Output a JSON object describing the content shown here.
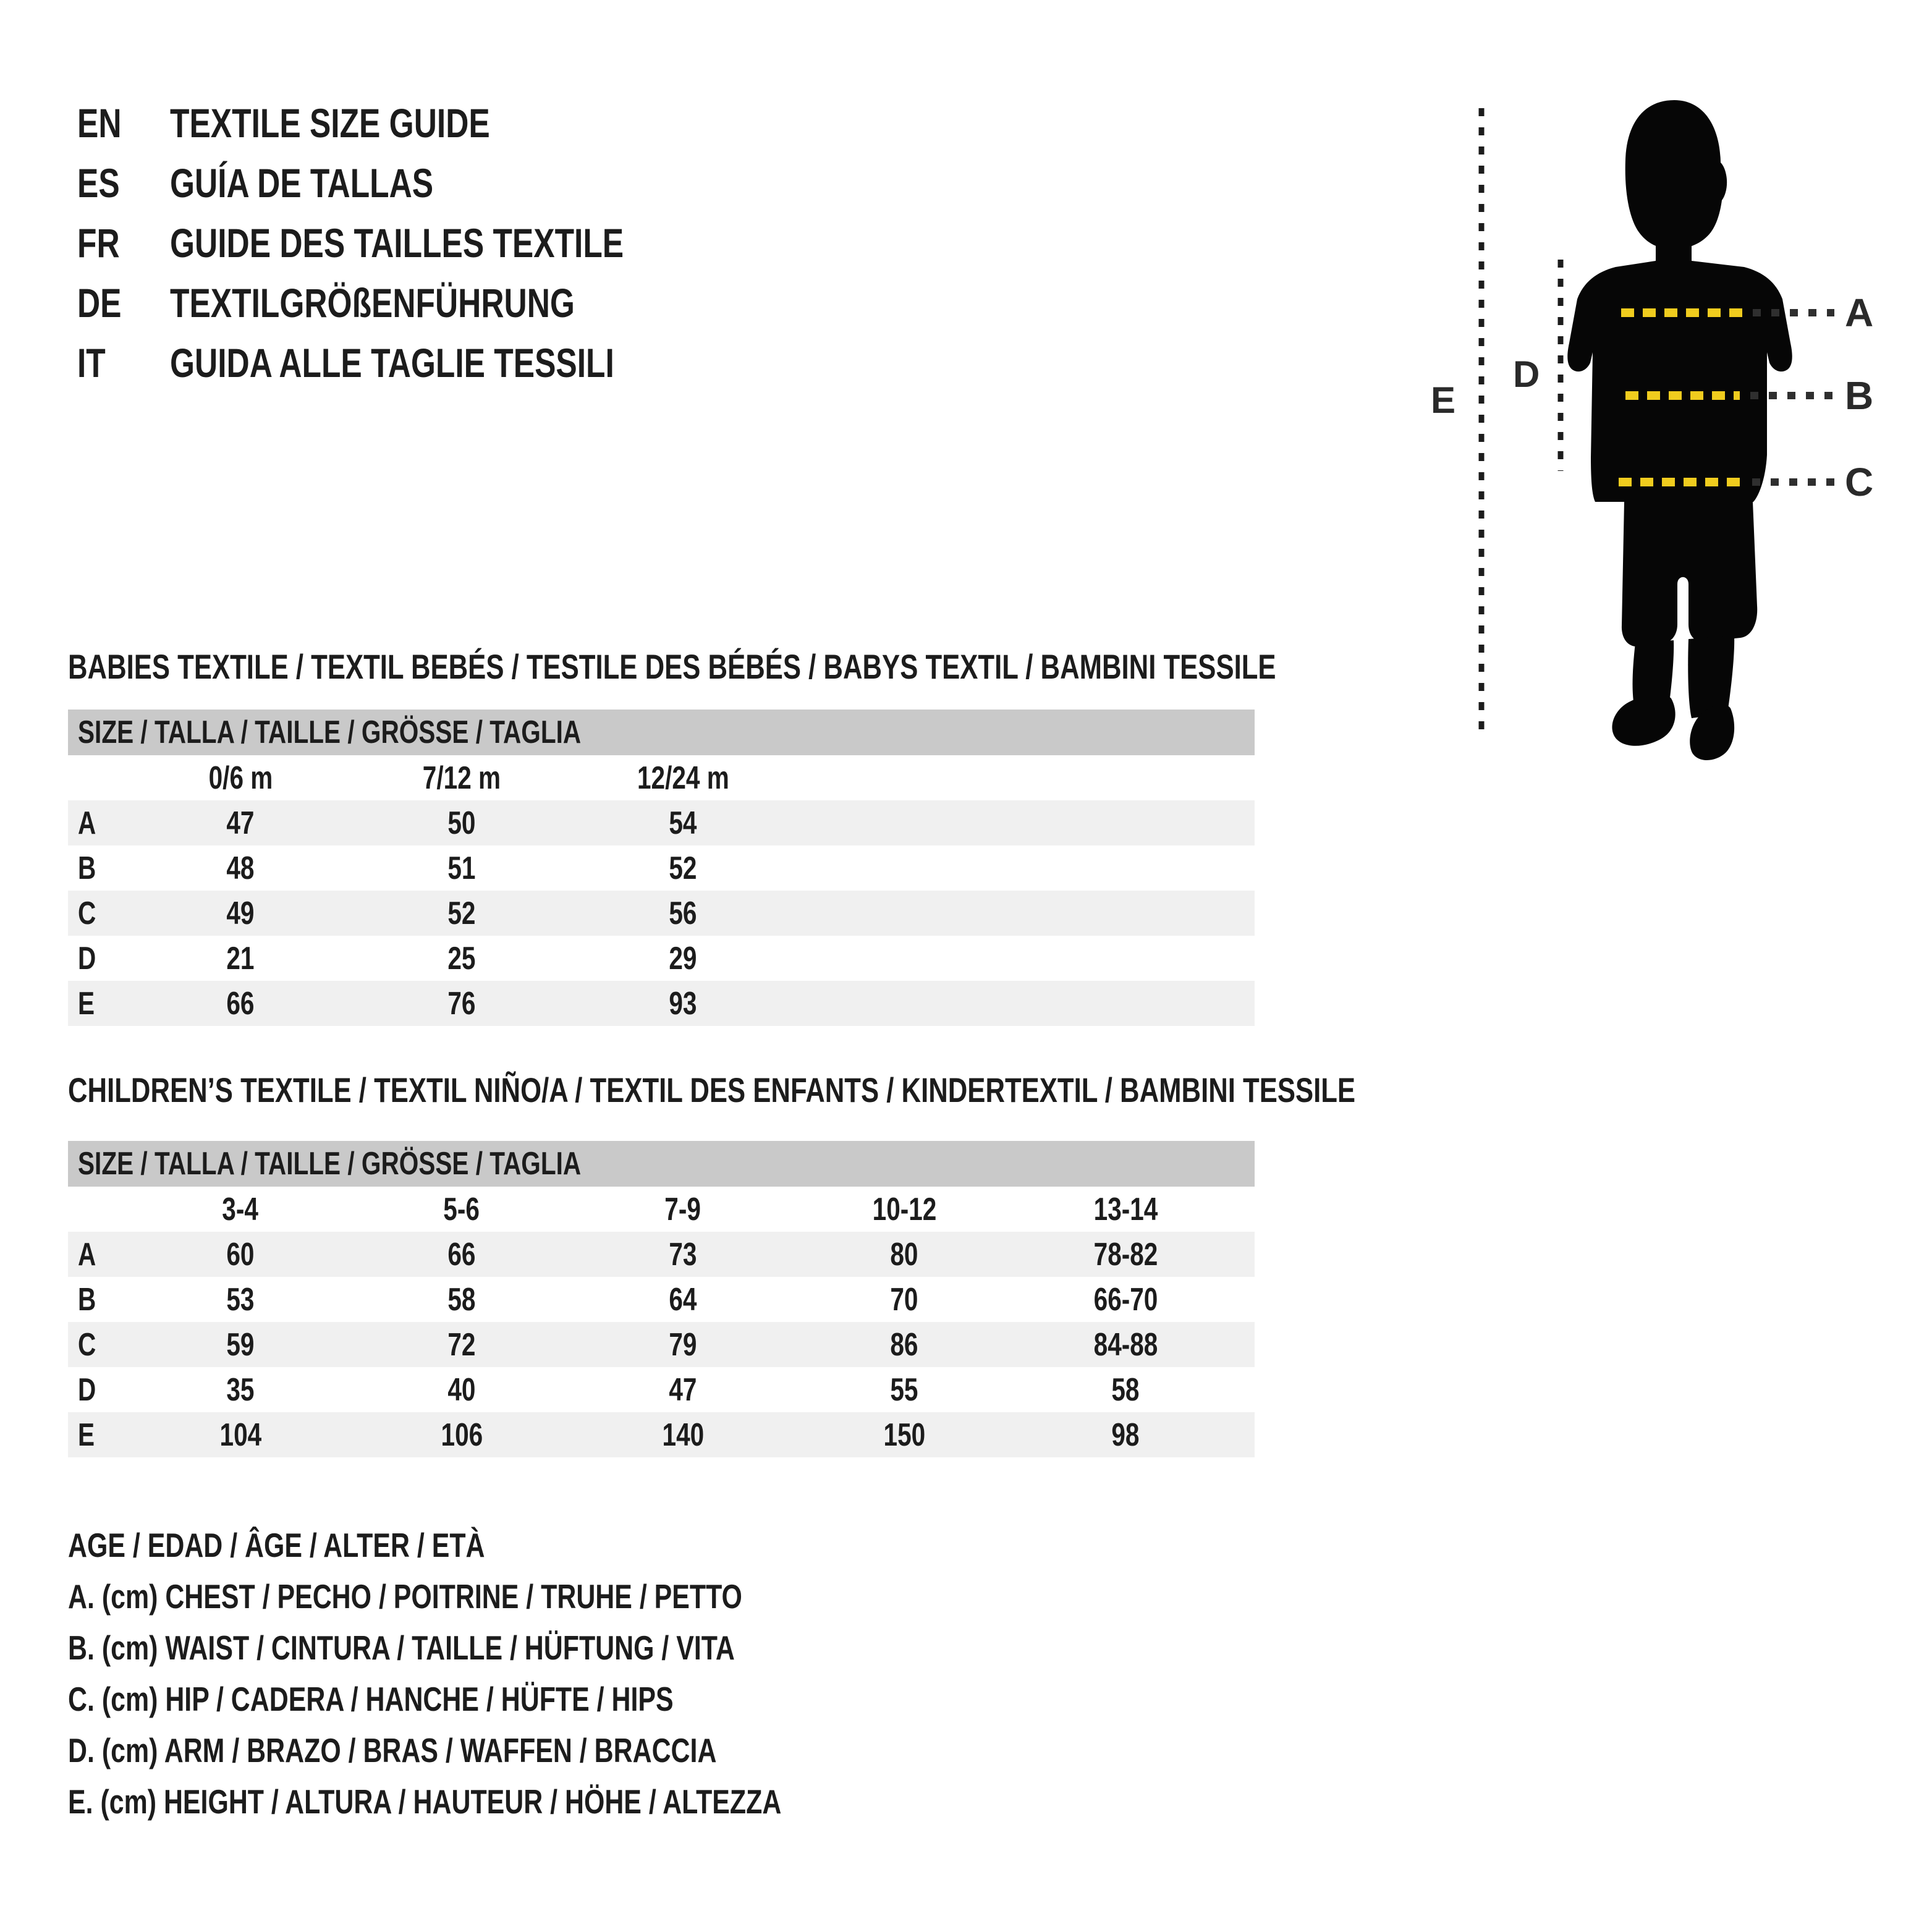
{
  "page": {
    "background": "#ffffff",
    "text_color": "#1c1c1c"
  },
  "header": {
    "items": [
      {
        "code": "EN",
        "title": "TEXTILE SIZE GUIDE"
      },
      {
        "code": "ES",
        "title": "GUÍA DE TALLAS"
      },
      {
        "code": "FR",
        "title": "GUIDE DES TAILLES TEXTILE"
      },
      {
        "code": "DE",
        "title": "TEXTILGRÖßENFÜHRUNG"
      },
      {
        "code": "IT",
        "title": "GUIDA ALLE TAGLIE TESSILI"
      }
    ]
  },
  "figure": {
    "label_a": "A",
    "label_b": "B",
    "label_c": "C",
    "label_d": "D",
    "label_e": "E",
    "colors": {
      "silhouette": "#060606",
      "yellow_dash": "#f0cc1e",
      "dark_dash": "#2f2f2f"
    }
  },
  "babies_table": {
    "title": "BABIES TEXTILE / TEXTIL BEBÉS / TESTILE DES BÉBÉS / BABYS TEXTIL / BAMBINI TESSILE",
    "size_header": "SIZE / TALLA / TAILLE / GRÖSSE / TAGLIA",
    "columns": [
      "0/6 m",
      "7/12 m",
      "12/24 m"
    ],
    "rows": [
      {
        "label": "A",
        "values": [
          "47",
          "50",
          "54"
        ]
      },
      {
        "label": "B",
        "values": [
          "48",
          "51",
          "52"
        ]
      },
      {
        "label": "C",
        "values": [
          "49",
          "52",
          "56"
        ]
      },
      {
        "label": "D",
        "values": [
          "21",
          "25",
          "29"
        ]
      },
      {
        "label": "E",
        "values": [
          "66",
          "76",
          "93"
        ]
      }
    ]
  },
  "children_table": {
    "title": "CHILDREN’S TEXTILE / TEXTIL NIÑO/A / TEXTIL DES ENFANTS / KINDERTEXTIL / BAMBINI TESSILE",
    "size_header": "SIZE / TALLA / TAILLE / GRÖSSE / TAGLIA",
    "columns": [
      "3-4",
      "5-6",
      "7-9",
      "10-12",
      "13-14"
    ],
    "rows": [
      {
        "label": "A",
        "values": [
          "60",
          "66",
          "73",
          "80",
          "78-82"
        ]
      },
      {
        "label": "B",
        "values": [
          "53",
          "58",
          "64",
          "70",
          "66-70"
        ]
      },
      {
        "label": "C",
        "values": [
          "59",
          "72",
          "79",
          "86",
          "84-88"
        ]
      },
      {
        "label": "D",
        "values": [
          "35",
          "40",
          "47",
          "55",
          "58"
        ]
      },
      {
        "label": "E",
        "values": [
          "104",
          "106",
          "140",
          "150",
          "98"
        ]
      }
    ]
  },
  "legend": {
    "lines": [
      "AGE / EDAD / ÂGE / ALTER / ETÀ",
      "A. (cm) CHEST / PECHO / POITRINE / TRUHE / PETTO",
      "B. (cm) WAIST / CINTURA / TAILLE / HÜFTUNG / VITA",
      "C. (cm) HIP / CADERA / HANCHE / HÜFTE / HIPS",
      "D. (cm) ARM / BRAZO / BRAS / WAFFEN / BRACCIA",
      "E. (cm) HEIGHT / ALTURA / HAUTEUR / HÖHE / ALTEZZA"
    ]
  }
}
